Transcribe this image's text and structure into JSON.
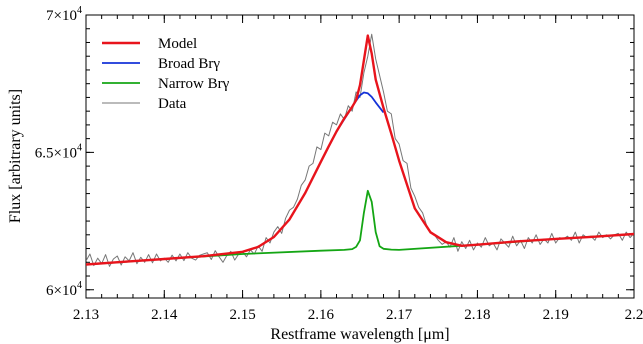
{
  "chart_data": {
    "type": "line",
    "title": "",
    "xlabel": "Restframe wavelength [μm]",
    "ylabel": "Flux [arbitrary units]",
    "xlim": [
      2.13,
      2.2
    ],
    "ylim": [
      59700,
      70000
    ],
    "x_ticks": [
      2.13,
      2.14,
      2.15,
      2.16,
      2.17,
      2.18,
      2.19,
      2.2
    ],
    "x_tick_labels": [
      "2.13",
      "2.14",
      "2.15",
      "2.16",
      "2.17",
      "2.18",
      "2.19",
      "2.2"
    ],
    "y_ticks": [
      60000,
      65000,
      70000
    ],
    "y_tick_labels": [
      {
        "mant": "6×10",
        "exp": "4"
      },
      {
        "mant": "6.5×10",
        "exp": "4"
      },
      {
        "mant": "7×10",
        "exp": "4"
      }
    ],
    "grid": false,
    "legend_position": "top-left",
    "series": [
      {
        "name": "Model",
        "color": "#e8141c",
        "x": [
          2.13,
          2.135,
          2.14,
          2.145,
          2.15,
          2.152,
          2.154,
          2.156,
          2.158,
          2.16,
          2.161,
          2.162,
          2.163,
          2.164,
          2.1645,
          2.165,
          2.1655,
          2.166,
          2.1665,
          2.167,
          2.168,
          2.169,
          2.17,
          2.172,
          2.174,
          2.176,
          2.178,
          2.18,
          2.185,
          2.19,
          2.195,
          2.2
        ],
        "y": [
          60920,
          61020,
          61120,
          61220,
          61380,
          61560,
          61920,
          62560,
          63520,
          64660,
          65220,
          65760,
          66240,
          66660,
          66900,
          67450,
          68350,
          69250,
          68600,
          67650,
          66620,
          65680,
          64700,
          62960,
          62090,
          61730,
          61600,
          61640,
          61760,
          61850,
          61930,
          62030
        ]
      },
      {
        "name": "Broad Brγ",
        "color": "#1432d8",
        "x": [
          2.158,
          2.16,
          2.162,
          2.164,
          2.1645,
          2.165,
          2.1655,
          2.166,
          2.1665,
          2.167,
          2.168
        ],
        "y": [
          63520,
          64660,
          65760,
          66660,
          66880,
          67080,
          67180,
          67150,
          67020,
          66820,
          66450
        ]
      },
      {
        "name": "Narrow Brγ",
        "color": "#14a614",
        "x": [
          2.13,
          2.14,
          2.15,
          2.16,
          2.163,
          2.164,
          2.1645,
          2.165,
          2.1655,
          2.166,
          2.1665,
          2.167,
          2.1675,
          2.168,
          2.169,
          2.17,
          2.18,
          2.19,
          2.2
        ],
        "y": [
          60920,
          61120,
          61300,
          61420,
          61450,
          61480,
          61560,
          61800,
          62800,
          63600,
          63200,
          62100,
          61580,
          61490,
          61460,
          61450,
          61640,
          61850,
          62030
        ]
      },
      {
        "name": "Data",
        "color": "#777777",
        "x": [
          2.13,
          2.1305,
          2.131,
          2.1315,
          2.132,
          2.1325,
          2.133,
          2.1335,
          2.134,
          2.1345,
          2.135,
          2.1355,
          2.136,
          2.1365,
          2.137,
          2.1375,
          2.138,
          2.1385,
          2.139,
          2.1395,
          2.14,
          2.1405,
          2.141,
          2.1415,
          2.142,
          2.1425,
          2.143,
          2.1435,
          2.144,
          2.1445,
          2.145,
          2.1455,
          2.146,
          2.1465,
          2.147,
          2.1475,
          2.148,
          2.1485,
          2.149,
          2.1495,
          2.15,
          2.1505,
          2.151,
          2.1515,
          2.152,
          2.1525,
          2.153,
          2.1535,
          2.154,
          2.1545,
          2.155,
          2.1555,
          2.156,
          2.1565,
          2.157,
          2.1575,
          2.158,
          2.1585,
          2.159,
          2.1595,
          2.16,
          2.1605,
          2.161,
          2.1615,
          2.162,
          2.1625,
          2.163,
          2.1635,
          2.164,
          2.1645,
          2.165,
          2.1655,
          2.166,
          2.1665,
          2.167,
          2.1675,
          2.168,
          2.1685,
          2.169,
          2.1695,
          2.17,
          2.1705,
          2.171,
          2.1715,
          2.172,
          2.1725,
          2.173,
          2.1735,
          2.174,
          2.1745,
          2.175,
          2.1755,
          2.176,
          2.1765,
          2.177,
          2.1775,
          2.178,
          2.1785,
          2.179,
          2.1795,
          2.18,
          2.1805,
          2.181,
          2.1815,
          2.182,
          2.1825,
          2.183,
          2.1835,
          2.184,
          2.1845,
          2.185,
          2.1855,
          2.186,
          2.1865,
          2.187,
          2.1875,
          2.188,
          2.1885,
          2.189,
          2.1895,
          2.19,
          2.1905,
          2.191,
          2.1915,
          2.192,
          2.1925,
          2.193,
          2.1935,
          2.194,
          2.1945,
          2.195,
          2.1955,
          2.196,
          2.1965,
          2.197,
          2.1975,
          2.198,
          2.1985,
          2.199,
          2.1995,
          2.2
        ],
        "y": [
          61050,
          61300,
          60880,
          61150,
          60950,
          61280,
          60850,
          61120,
          61230,
          60900,
          61200,
          61050,
          61350,
          60950,
          61180,
          61000,
          61280,
          60980,
          61300,
          61050,
          61150,
          61000,
          61260,
          61050,
          61300,
          61060,
          61350,
          61150,
          61080,
          61250,
          61300,
          61350,
          61100,
          61420,
          61200,
          61000,
          61250,
          61400,
          61080,
          61300,
          61380,
          61200,
          61450,
          61300,
          61600,
          61400,
          61900,
          61700,
          62100,
          62300,
          62050,
          62600,
          62900,
          63000,
          63300,
          63800,
          64000,
          64500,
          64600,
          65200,
          65100,
          65700,
          65600,
          66100,
          66000,
          66400,
          66200,
          66700,
          66500,
          67200,
          67000,
          67900,
          68500,
          69300,
          68400,
          67800,
          67200,
          66500,
          66400,
          65500,
          65300,
          64700,
          64600,
          63700,
          63400,
          63000,
          62800,
          62350,
          62100,
          62000,
          61800,
          61650,
          61750,
          61550,
          61900,
          61400,
          61750,
          61500,
          61800,
          61450,
          61700,
          61550,
          61900,
          61600,
          61700,
          61450,
          61850,
          61700,
          61550,
          61950,
          61600,
          61800,
          61500,
          61900,
          61700,
          62000,
          61650,
          61850,
          61700,
          62050,
          61700,
          61900,
          61850,
          61950,
          61800,
          62100,
          61700,
          62000,
          61900,
          61950,
          61800,
          62100,
          61900,
          62000,
          61850,
          62000,
          62050,
          61800,
          62100,
          61900,
          62050
        ]
      }
    ]
  }
}
